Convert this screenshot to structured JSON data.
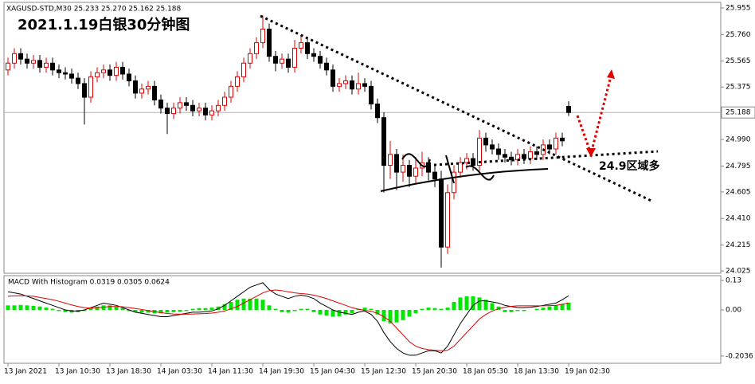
{
  "chart_data": [
    {
      "type": "candlestick",
      "header": "XAGUSD-STD,M30  25.233 25.270 25.162 25.188",
      "title": "2021.1.19白银30分钟图",
      "annotation": "24.9区域多",
      "up_color": "#e00000",
      "down_color": "#000000",
      "price_line_color": "#b0b0b0",
      "categories": [
        "13 Jan 2021",
        null,
        null,
        null,
        null,
        null,
        null,
        null,
        "13 Jan 10:30",
        null,
        null,
        null,
        null,
        null,
        null,
        null,
        "13 Jan 18:30",
        null,
        null,
        null,
        null,
        null,
        null,
        null,
        "14 Jan 03:30",
        null,
        null,
        null,
        null,
        null,
        null,
        null,
        "14 Jan 11:30",
        null,
        null,
        null,
        null,
        null,
        null,
        null,
        "14 Jan 19:30",
        null,
        null,
        null,
        null,
        null,
        null,
        null,
        "15 Jan 04:30",
        null,
        null,
        null,
        null,
        null,
        null,
        null,
        "15 Jan 12:30",
        null,
        null,
        null,
        null,
        null,
        null,
        null,
        "15 Jan 20:30",
        null,
        null,
        null,
        null,
        null,
        null,
        null,
        "18 Jan 05:30",
        null,
        null,
        null,
        null,
        null,
        null,
        null,
        "18 Jan 13:30",
        null,
        null,
        null,
        null,
        null,
        null,
        null,
        "19 Jan 02:30"
      ],
      "open": [
        25.5,
        25.55,
        25.62,
        25.58,
        25.55,
        25.57,
        25.52,
        25.55,
        25.5,
        25.48,
        25.47,
        25.44,
        25.4,
        25.3,
        25.45,
        25.48,
        25.5,
        25.46,
        25.52,
        25.47,
        25.42,
        25.33,
        25.36,
        25.38,
        25.28,
        25.22,
        25.18,
        25.22,
        25.26,
        25.24,
        25.2,
        25.22,
        25.17,
        25.2,
        25.24,
        25.3,
        25.38,
        25.45,
        25.55,
        25.62,
        25.7,
        25.8,
        25.6,
        25.55,
        25.58,
        25.52,
        25.66,
        25.7,
        25.62,
        25.6,
        25.55,
        25.5,
        25.38,
        25.4,
        25.42,
        25.36,
        25.4,
        25.38,
        25.25,
        25.15,
        24.8,
        24.88,
        24.75,
        24.8,
        24.72,
        24.78,
        24.82,
        24.75,
        24.7,
        24.2,
        24.6,
        24.75,
        24.82,
        24.85,
        24.8,
        25.0,
        24.95,
        24.92,
        24.88,
        24.86,
        24.84,
        24.88,
        24.85,
        24.9,
        24.88,
        24.95,
        24.92,
        25.0,
        25.233
      ],
      "high": [
        25.59,
        25.66,
        25.66,
        25.62,
        25.61,
        25.61,
        25.59,
        25.59,
        25.54,
        25.52,
        25.51,
        25.48,
        25.44,
        25.49,
        25.52,
        25.54,
        25.54,
        25.56,
        25.56,
        25.51,
        25.46,
        25.4,
        25.42,
        25.42,
        25.32,
        25.26,
        25.26,
        25.3,
        25.3,
        25.28,
        25.26,
        25.26,
        25.24,
        25.28,
        25.34,
        25.42,
        25.49,
        25.59,
        25.66,
        25.74,
        25.9,
        25.84,
        25.64,
        25.62,
        25.62,
        25.72,
        25.75,
        25.74,
        25.66,
        25.64,
        25.59,
        25.54,
        25.44,
        25.46,
        25.46,
        25.48,
        25.44,
        25.42,
        25.29,
        25.19,
        24.98,
        24.92,
        24.88,
        24.84,
        24.86,
        24.9,
        24.86,
        24.8,
        24.76,
        24.66,
        24.8,
        24.86,
        24.89,
        24.89,
        25.06,
        25.04,
        24.99,
        24.96,
        24.92,
        24.9,
        24.92,
        24.92,
        24.94,
        24.94,
        24.99,
        24.99,
        25.04,
        25.04,
        25.27
      ],
      "low": [
        25.46,
        25.51,
        25.54,
        25.51,
        25.51,
        25.48,
        25.48,
        25.46,
        25.44,
        25.43,
        25.4,
        25.36,
        25.1,
        25.26,
        25.41,
        25.44,
        25.42,
        25.42,
        25.43,
        25.38,
        25.29,
        25.29,
        25.32,
        25.24,
        25.18,
        25.03,
        25.14,
        25.18,
        25.2,
        25.16,
        25.16,
        25.13,
        25.13,
        25.16,
        25.2,
        25.26,
        25.34,
        25.41,
        25.51,
        25.58,
        25.66,
        25.56,
        25.49,
        25.51,
        25.48,
        25.48,
        25.62,
        25.58,
        25.56,
        25.51,
        25.46,
        25.34,
        25.34,
        25.36,
        25.32,
        25.32,
        25.34,
        25.21,
        25.11,
        24.6,
        24.7,
        24.62,
        24.68,
        24.64,
        24.66,
        24.72,
        24.69,
        24.64,
        24.05,
        24.15,
        24.55,
        24.71,
        24.77,
        24.76,
        24.76,
        24.9,
        24.88,
        24.84,
        24.82,
        24.8,
        24.8,
        24.81,
        24.81,
        24.84,
        24.84,
        24.88,
        24.88,
        24.94,
        25.162
      ],
      "close": [
        25.55,
        25.62,
        25.58,
        25.55,
        25.57,
        25.52,
        25.55,
        25.5,
        25.48,
        25.47,
        25.44,
        25.4,
        25.3,
        25.45,
        25.48,
        25.5,
        25.46,
        25.52,
        25.47,
        25.42,
        25.33,
        25.36,
        25.38,
        25.28,
        25.22,
        25.18,
        25.22,
        25.26,
        25.24,
        25.2,
        25.22,
        25.17,
        25.2,
        25.24,
        25.3,
        25.38,
        25.45,
        25.55,
        25.62,
        25.7,
        25.8,
        25.6,
        25.55,
        25.58,
        25.52,
        25.66,
        25.7,
        25.62,
        25.6,
        25.55,
        25.5,
        25.38,
        25.4,
        25.42,
        25.36,
        25.4,
        25.38,
        25.25,
        25.15,
        24.8,
        24.88,
        24.75,
        24.8,
        24.72,
        24.78,
        24.82,
        24.75,
        24.7,
        24.2,
        24.6,
        24.75,
        24.82,
        24.85,
        24.8,
        25.0,
        24.95,
        24.92,
        24.88,
        24.86,
        24.84,
        24.88,
        24.85,
        24.9,
        24.88,
        24.95,
        24.92,
        25.0,
        24.98,
        25.188
      ],
      "ylim": [
        24.008,
        25.996
      ],
      "yticks": [
        25.955,
        {
          "value": 25.76,
          "label": "25.760"
        },
        25.565,
        25.375,
        {
          "value": 24.99,
          "label": "24.990"
        },
        24.795,
        24.605,
        {
          "value": 24.41,
          "label": "24.410"
        },
        24.215,
        24.025
      ]
    },
    {
      "type": "macd",
      "title": "MACD With Histogram 0.0319 0.0305 0.0624",
      "histogram": {
        "color": "#00e600",
        "values": [
          0.02,
          0.02,
          0.022,
          0.02,
          0.018,
          0.015,
          0.01,
          0.005,
          -0.005,
          -0.01,
          -0.012,
          -0.01,
          -0.005,
          0.008,
          0.015,
          0.02,
          0.02,
          0.015,
          0.008,
          -0.005,
          -0.01,
          -0.012,
          -0.012,
          -0.015,
          -0.015,
          -0.012,
          -0.01,
          -0.008,
          -0.005,
          0.005,
          0.008,
          0.008,
          0.01,
          0.015,
          0.025,
          0.035,
          0.045,
          0.05,
          0.05,
          0.05,
          0.045,
          0.02,
          0.005,
          -0.01,
          -0.012,
          -0.005,
          0.005,
          0.005,
          -0.01,
          -0.02,
          -0.025,
          -0.03,
          -0.028,
          -0.02,
          -0.015,
          0.005,
          0.01,
          0.005,
          -0.02,
          -0.05,
          -0.06,
          -0.055,
          -0.045,
          -0.03,
          -0.015,
          0.005,
          0.01,
          0.008,
          0.005,
          0.01,
          0.035,
          0.055,
          0.06,
          0.06,
          0.055,
          0.045,
          0.03,
          0.015,
          -0.01,
          -0.01,
          -0.005,
          -0.005,
          0,
          0.005,
          0.01,
          0.015,
          0.02,
          0.025,
          0.0319
        ]
      },
      "macd": {
        "color": "#000000",
        "values": [
          0.08,
          0.075,
          0.07,
          0.06,
          0.05,
          0.04,
          0.03,
          0.02,
          0.01,
          0,
          -0.005,
          -0.005,
          0,
          0.01,
          0.02,
          0.03,
          0.025,
          0.02,
          0.01,
          0,
          -0.01,
          -0.015,
          -0.02,
          -0.025,
          -0.03,
          -0.03,
          -0.025,
          -0.02,
          -0.015,
          -0.01,
          -0.01,
          -0.008,
          -0.005,
          0.005,
          0.02,
          0.04,
          0.06,
          0.08,
          0.1,
          0.11,
          0.12,
          0.09,
          0.07,
          0.06,
          0.05,
          0.06,
          0.065,
          0.06,
          0.05,
          0.03,
          0.015,
          0,
          -0.01,
          -0.015,
          -0.02,
          -0.01,
          -0.005,
          -0.02,
          -0.05,
          -0.1,
          -0.14,
          -0.17,
          -0.19,
          -0.2,
          -0.2,
          -0.19,
          -0.18,
          -0.18,
          -0.19,
          -0.16,
          -0.11,
          -0.06,
          -0.02,
          0.02,
          0.04,
          0.04,
          0.035,
          0.03,
          0.02,
          0.015,
          0.01,
          0.01,
          0.012,
          0.015,
          0.02,
          0.025,
          0.03,
          0.045,
          0.0624
        ]
      },
      "signal": {
        "color": "#e00000",
        "values": [
          0.06,
          0.062,
          0.063,
          0.062,
          0.06,
          0.055,
          0.05,
          0.045,
          0.038,
          0.03,
          0.022,
          0.015,
          0.01,
          0.008,
          0.01,
          0.012,
          0.015,
          0.015,
          0.014,
          0.01,
          0.006,
          0.002,
          -0.003,
          -0.008,
          -0.012,
          -0.016,
          -0.018,
          -0.019,
          -0.019,
          -0.018,
          -0.017,
          -0.016,
          -0.014,
          -0.01,
          -0.005,
          0.005,
          0.015,
          0.03,
          0.045,
          0.06,
          0.075,
          0.085,
          0.088,
          0.085,
          0.08,
          0.075,
          0.072,
          0.07,
          0.065,
          0.058,
          0.05,
          0.04,
          0.03,
          0.02,
          0.01,
          0.003,
          -0.002,
          -0.006,
          -0.015,
          -0.03,
          -0.05,
          -0.08,
          -0.11,
          -0.14,
          -0.16,
          -0.17,
          -0.175,
          -0.178,
          -0.18,
          -0.178,
          -0.16,
          -0.13,
          -0.1,
          -0.07,
          -0.04,
          -0.02,
          -0.005,
          0.005,
          0.012,
          0.016,
          0.018,
          0.018,
          0.018,
          0.018,
          0.018,
          0.019,
          0.02,
          0.025,
          0.0305
        ]
      },
      "ylim": [
        -0.2354,
        0.1476
      ],
      "yticks": [
        0.13,
        {
          "value": 0,
          "label": "0.00"
        },
        -0.2036
      ]
    }
  ]
}
